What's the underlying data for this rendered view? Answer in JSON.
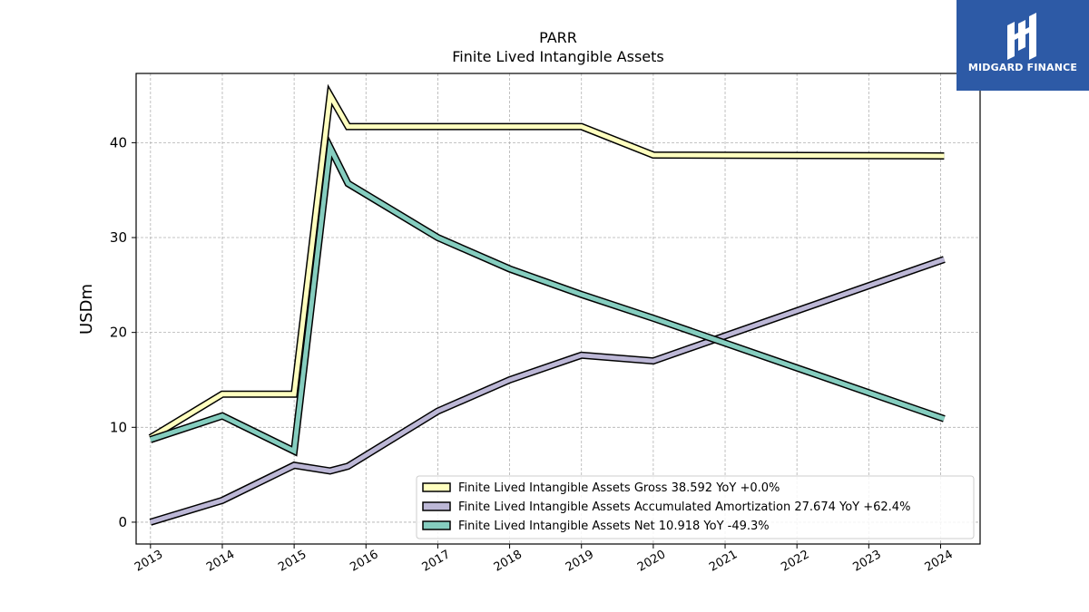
{
  "brand": {
    "name": "MIDGARD FINANCE",
    "icon": "midgard-logo-icon",
    "background": "#2d5aa6"
  },
  "chart_data": {
    "type": "line",
    "title": "PARR",
    "subtitle": "Finite Lived Intangible Assets",
    "xlabel": "",
    "ylabel": "USDm",
    "xlim": [
      2012.8,
      2024.55
    ],
    "ylim": [
      -2.3,
      47.3
    ],
    "x_ticks": [
      "2013",
      "2014",
      "2015",
      "2016",
      "2017",
      "2018",
      "2019",
      "2020",
      "2021",
      "2022",
      "2023",
      "2024"
    ],
    "y_ticks": [
      0,
      10,
      20,
      30,
      40
    ],
    "grid": true,
    "legend_position": "lower-right",
    "series": [
      {
        "name": "Finite Lived Intangible Assets Gross",
        "legend_label": "Finite Lived Intangible Assets Gross  38.592 YoY +0.0%",
        "color": "#ffffbf",
        "points": [
          [
            2013.0,
            8.9
          ],
          [
            2014.0,
            13.5
          ],
          [
            2015.0,
            13.5
          ],
          [
            2015.5,
            45.0
          ],
          [
            2015.75,
            41.7
          ],
          [
            2019.0,
            41.7
          ],
          [
            2020.0,
            38.7
          ],
          [
            2024.05,
            38.6
          ]
        ]
      },
      {
        "name": "Finite Lived Intangible Assets Accumulated Amortization",
        "legend_label": "Finite Lived Intangible Assets Accumulated Amortization  27.674 YoY +62.4%",
        "color": "#bcb7d6",
        "points": [
          [
            2013.0,
            0.0
          ],
          [
            2014.0,
            2.3
          ],
          [
            2015.0,
            6.0
          ],
          [
            2015.5,
            5.4
          ],
          [
            2015.75,
            5.9
          ],
          [
            2017.0,
            11.7
          ],
          [
            2018.0,
            15.0
          ],
          [
            2019.0,
            17.6
          ],
          [
            2020.0,
            17.0
          ],
          [
            2024.05,
            27.7
          ]
        ]
      },
      {
        "name": "Finite Lived Intangible Assets Net",
        "legend_label": "Finite Lived Intangible Assets Net  10.918 YoY -49.3%",
        "color": "#85cdbf",
        "points": [
          [
            2013.0,
            8.7
          ],
          [
            2014.0,
            11.2
          ],
          [
            2015.0,
            7.5
          ],
          [
            2015.5,
            39.5
          ],
          [
            2015.75,
            35.7
          ],
          [
            2017.0,
            30.0
          ],
          [
            2018.0,
            26.7
          ],
          [
            2019.0,
            24.0
          ],
          [
            2020.0,
            21.5
          ],
          [
            2024.05,
            10.9
          ]
        ]
      }
    ]
  }
}
